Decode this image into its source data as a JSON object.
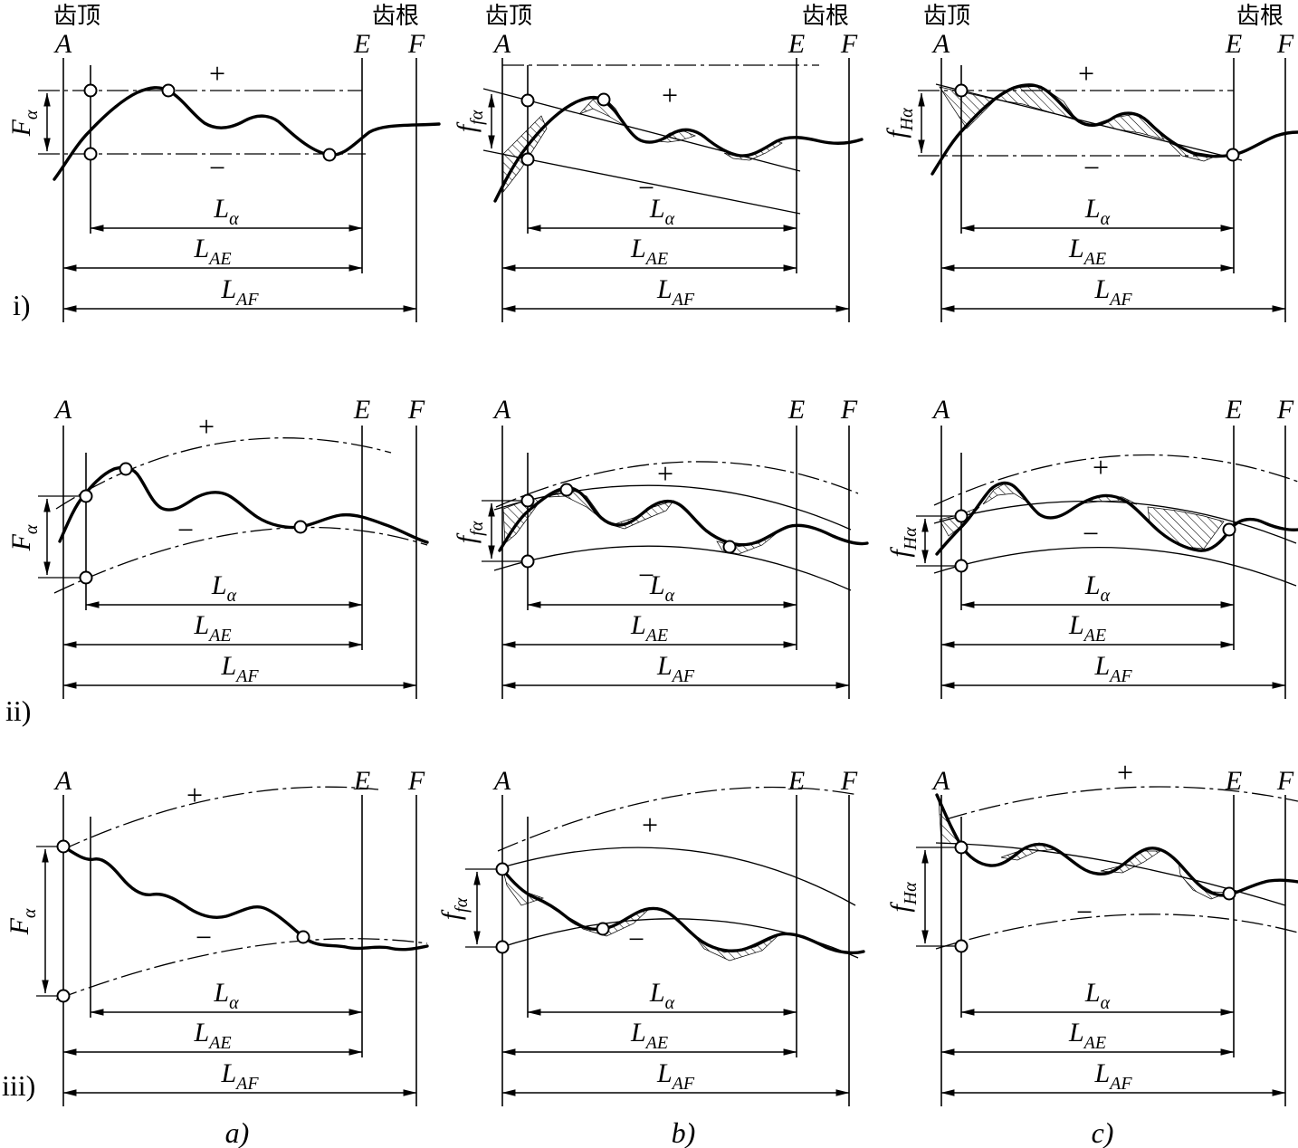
{
  "labels": {
    "tooth_tip": "齿顶",
    "tooth_root": "齿根",
    "A": "A",
    "E": "E",
    "F": "F",
    "plus": "+",
    "minus": "−"
  },
  "symbols": {
    "L_alpha": {
      "base": "L",
      "sub": "α"
    },
    "L_AE": {
      "base": "L",
      "sub": "AE"
    },
    "L_AF": {
      "base": "L",
      "sub": "AF"
    },
    "F_alpha": {
      "base": "F",
      "sub": "α"
    },
    "f_f_alpha": {
      "base": "f",
      "sub": "fα"
    },
    "f_H_alpha": {
      "base": "f",
      "sub": "Hα"
    }
  },
  "rows": [
    {
      "label": "i)"
    },
    {
      "label": "ii)"
    },
    {
      "label": "iii)"
    }
  ],
  "cols": [
    {
      "label": "a)"
    },
    {
      "label": "b)"
    },
    {
      "label": "c)"
    }
  ],
  "colors": {
    "ink": "#000000",
    "background": "#ffffff"
  }
}
